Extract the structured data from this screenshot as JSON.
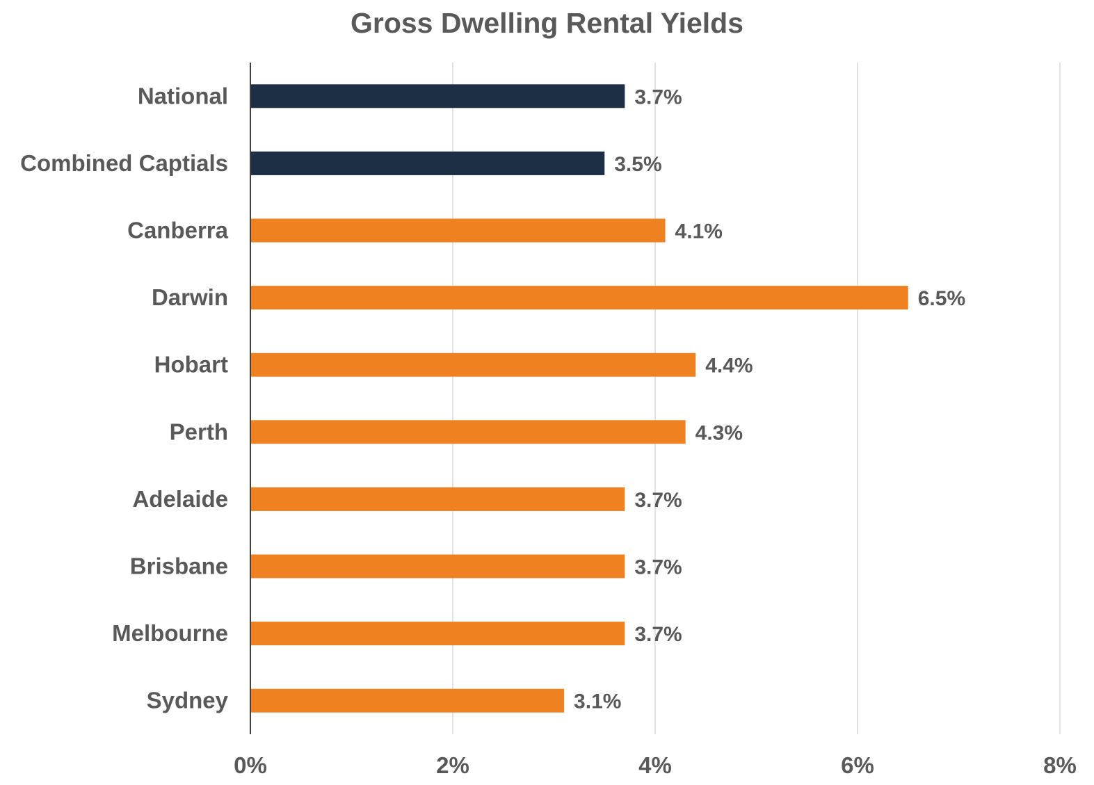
{
  "chart_data": {
    "type": "bar",
    "orientation": "horizontal",
    "title": "Gross Dwelling Rental Yields",
    "categories": [
      "National",
      "Combined Captials",
      "Canberra",
      "Darwin",
      "Hobart",
      "Perth",
      "Adelaide",
      "Brisbane",
      "Melbourne",
      "Sydney"
    ],
    "values": [
      3.7,
      3.5,
      4.1,
      6.5,
      4.4,
      4.3,
      3.7,
      3.7,
      3.7,
      3.1
    ],
    "value_labels": [
      "3.7%",
      "3.5%",
      "4.1%",
      "6.5%",
      "4.4%",
      "4.3%",
      "3.7%",
      "3.7%",
      "3.7%",
      "3.1%"
    ],
    "bar_colors": [
      "#1d2f45",
      "#1d2f45",
      "#ef8121",
      "#ef8121",
      "#ef8121",
      "#ef8121",
      "#ef8121",
      "#ef8121",
      "#ef8121",
      "#ef8121"
    ],
    "xlim": [
      0,
      8
    ],
    "x_ticks": [
      0,
      2,
      4,
      6,
      8
    ],
    "x_tick_labels": [
      "0%",
      "2%",
      "4%",
      "6%",
      "8%"
    ],
    "xlabel": "",
    "ylabel": "",
    "grid": "vertical",
    "legend": "none"
  }
}
